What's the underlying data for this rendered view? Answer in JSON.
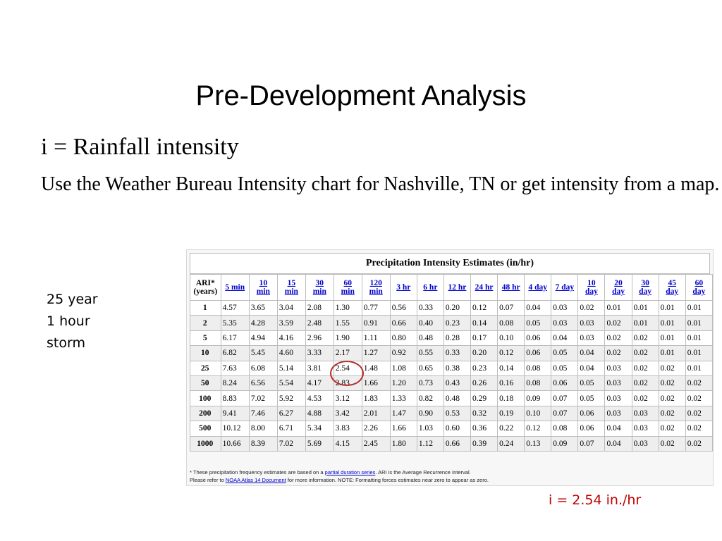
{
  "slide": {
    "title": "Pre-Development Analysis",
    "bullet1": "i = Rainfall intensity",
    "bullet2": "Use the Weather Bureau Intensity chart for Nashville, TN or get intensity from a map.",
    "storm_label": [
      "25 year",
      "1 hour",
      "storm"
    ],
    "result": "i = 2.54 in./hr"
  },
  "table": {
    "title": "Precipitation Intensity Estimates (in/hr)",
    "first_header": [
      "ARI*",
      "(years)"
    ],
    "columns": [
      [
        "5 min"
      ],
      [
        "10",
        "min"
      ],
      [
        "15",
        "min"
      ],
      [
        "30",
        "min"
      ],
      [
        "60",
        "min"
      ],
      [
        "120",
        "min"
      ],
      [
        "3 hr"
      ],
      [
        "6 hr"
      ],
      [
        "12 hr"
      ],
      [
        "24 hr"
      ],
      [
        "48 hr"
      ],
      [
        "4 day"
      ],
      [
        "7 day"
      ],
      [
        "10",
        "day"
      ],
      [
        "20",
        "day"
      ],
      [
        "30",
        "day"
      ],
      [
        "45",
        "day"
      ],
      [
        "60",
        "day"
      ]
    ],
    "rows": [
      {
        "ari": "1",
        "values": [
          "4.57",
          "3.65",
          "3.04",
          "2.08",
          "1.30",
          "0.77",
          "0.56",
          "0.33",
          "0.20",
          "0.12",
          "0.07",
          "0.04",
          "0.03",
          "0.02",
          "0.01",
          "0.01",
          "0.01",
          "0.01"
        ]
      },
      {
        "ari": "2",
        "values": [
          "5.35",
          "4.28",
          "3.59",
          "2.48",
          "1.55",
          "0.91",
          "0.66",
          "0.40",
          "0.23",
          "0.14",
          "0.08",
          "0.05",
          "0.03",
          "0.03",
          "0.02",
          "0.01",
          "0.01",
          "0.01"
        ]
      },
      {
        "ari": "5",
        "values": [
          "6.17",
          "4.94",
          "4.16",
          "2.96",
          "1.90",
          "1.11",
          "0.80",
          "0.48",
          "0.28",
          "0.17",
          "0.10",
          "0.06",
          "0.04",
          "0.03",
          "0.02",
          "0.02",
          "0.01",
          "0.01"
        ]
      },
      {
        "ari": "10",
        "values": [
          "6.82",
          "5.45",
          "4.60",
          "3.33",
          "2.17",
          "1.27",
          "0.92",
          "0.55",
          "0.33",
          "0.20",
          "0.12",
          "0.06",
          "0.05",
          "0.04",
          "0.02",
          "0.02",
          "0.01",
          "0.01"
        ]
      },
      {
        "ari": "25",
        "values": [
          "7.63",
          "6.08",
          "5.14",
          "3.81",
          "2.54",
          "1.48",
          "1.08",
          "0.65",
          "0.38",
          "0.23",
          "0.14",
          "0.08",
          "0.05",
          "0.04",
          "0.03",
          "0.02",
          "0.02",
          "0.01"
        ]
      },
      {
        "ari": "50",
        "values": [
          "8.24",
          "6.56",
          "5.54",
          "4.17",
          "2.83",
          "1.66",
          "1.20",
          "0.73",
          "0.43",
          "0.26",
          "0.16",
          "0.08",
          "0.06",
          "0.05",
          "0.03",
          "0.02",
          "0.02",
          "0.02"
        ]
      },
      {
        "ari": "100",
        "values": [
          "8.83",
          "7.02",
          "5.92",
          "4.53",
          "3.12",
          "1.83",
          "1.33",
          "0.82",
          "0.48",
          "0.29",
          "0.18",
          "0.09",
          "0.07",
          "0.05",
          "0.03",
          "0.02",
          "0.02",
          "0.02"
        ]
      },
      {
        "ari": "200",
        "values": [
          "9.41",
          "7.46",
          "6.27",
          "4.88",
          "3.42",
          "2.01",
          "1.47",
          "0.90",
          "0.53",
          "0.32",
          "0.19",
          "0.10",
          "0.07",
          "0.06",
          "0.03",
          "0.03",
          "0.02",
          "0.02"
        ]
      },
      {
        "ari": "500",
        "values": [
          "10.12",
          "8.00",
          "6.71",
          "5.34",
          "3.83",
          "2.26",
          "1.66",
          "1.03",
          "0.60",
          "0.36",
          "0.22",
          "0.12",
          "0.08",
          "0.06",
          "0.04",
          "0.03",
          "0.02",
          "0.02"
        ]
      },
      {
        "ari": "1000",
        "values": [
          "10.66",
          "8.39",
          "7.02",
          "5.69",
          "4.15",
          "2.45",
          "1.80",
          "1.12",
          "0.66",
          "0.39",
          "0.24",
          "0.13",
          "0.09",
          "0.07",
          "0.04",
          "0.03",
          "0.02",
          "0.02"
        ]
      }
    ],
    "footnote": {
      "line1_a": "* These precipitation frequency estimates are based on a ",
      "line1_link": "partial duration series",
      "line1_b": ". ARI is the Average Recurrence Interval.",
      "line2_a": "Please refer to ",
      "line2_link": "NOAA Atlas 14 Document",
      "line2_b": " for more information. NOTE: Formatting forces estimates near zero to appear as zero."
    }
  },
  "colors": {
    "result_text": "#c00000",
    "circle": "#b33030",
    "link": "#0000cc"
  }
}
